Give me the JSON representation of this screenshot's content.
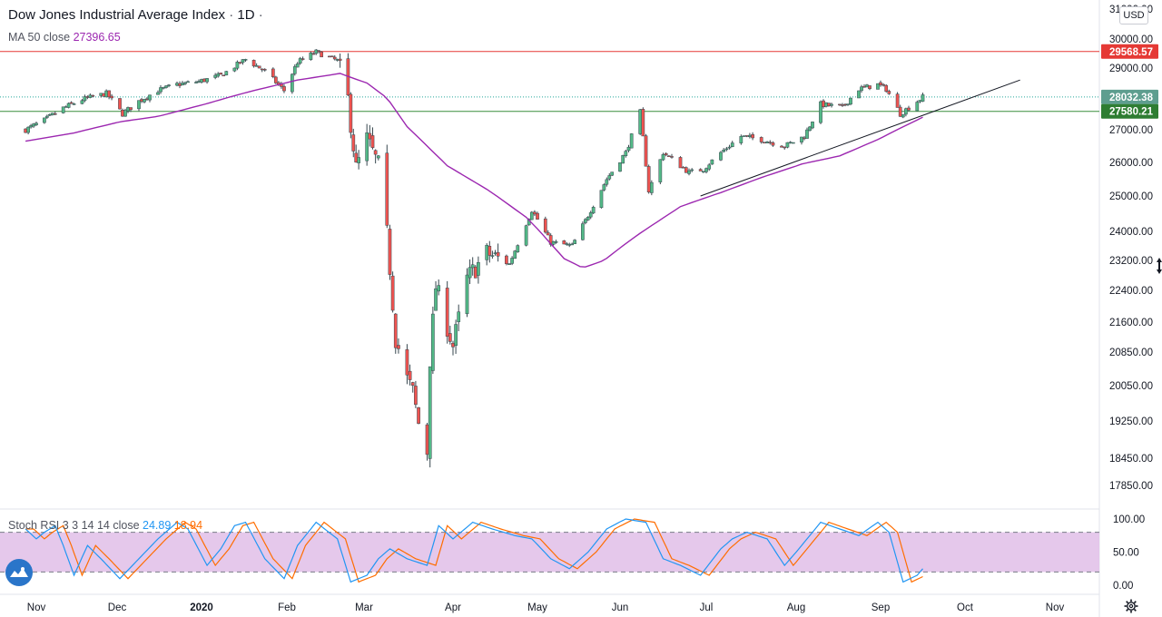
{
  "title": "Dow Jones Industrial Average Index",
  "interval": "1D",
  "separator": "·",
  "currency": "USD",
  "ma_label": "MA 50 close",
  "ma_value": "27396.65",
  "stoch_label": "Stoch RSI 3 3 14 14 close",
  "stoch_k": "24.89",
  "stoch_d": "18.94",
  "colors": {
    "up": "#26a69a",
    "up_fill": "#53b987",
    "down": "#ef5350",
    "wick": "#37474f",
    "ma": "#9c27b0",
    "resistance": "#e53935",
    "support": "#388e3c",
    "k": "#2196f3",
    "d": "#ff6d00",
    "band": "#e1bee7"
  },
  "chart_data": [
    {
      "type": "candlestick",
      "title": "Dow Jones Industrial Average Index",
      "y_ticks": [
        "30000.00",
        "29000.00",
        "28000.00",
        "27000.00",
        "26000.00",
        "25000.00",
        "24000.00",
        "23200.00",
        "22400.00",
        "21600.00",
        "20850.00",
        "20050.00",
        "19250.00",
        "18450.00",
        "17850.00"
      ],
      "x_ticks": [
        "Nov",
        "Dec",
        "2020",
        "Feb",
        "Mar",
        "Apr",
        "May",
        "Jun",
        "Jul",
        "Aug",
        "Sep",
        "Oct",
        "Nov"
      ],
      "price_labels": {
        "resistance": "29568.57",
        "last_close": "28032.38",
        "support": "27580.21"
      },
      "ylim": [
        17500,
        31000
      ],
      "close_path": [
        [
          "2019-10-28",
          27000
        ],
        [
          "2019-11-04",
          27300
        ],
        [
          "2019-11-11",
          27680
        ],
        [
          "2019-11-18",
          27950
        ],
        [
          "2019-11-27",
          28150
        ],
        [
          "2019-12-03",
          27500
        ],
        [
          "2019-12-09",
          27900
        ],
        [
          "2019-12-16",
          28250
        ],
        [
          "2019-12-23",
          28450
        ],
        [
          "2019-12-31",
          28550
        ],
        [
          "2020-01-08",
          28750
        ],
        [
          "2020-01-17",
          29300
        ],
        [
          "2020-01-24",
          28900
        ],
        [
          "2020-01-31",
          28250
        ],
        [
          "2020-02-05",
          29200
        ],
        [
          "2020-02-12",
          29550
        ],
        [
          "2020-02-20",
          29250
        ],
        [
          "2020-02-24",
          27950
        ],
        [
          "2020-02-27",
          25800
        ],
        [
          "2020-03-02",
          26700
        ],
        [
          "2020-03-06",
          25900
        ],
        [
          "2020-03-09",
          23900
        ],
        [
          "2020-03-12",
          21200
        ],
        [
          "2020-03-16",
          20200
        ],
        [
          "2020-03-18",
          19900
        ],
        [
          "2020-03-20",
          19200
        ],
        [
          "2020-03-23",
          18600
        ],
        [
          "2020-03-24",
          20700
        ],
        [
          "2020-03-26",
          22500
        ],
        [
          "2020-04-01",
          21000
        ],
        [
          "2020-04-06",
          22700
        ],
        [
          "2020-04-13",
          23400
        ],
        [
          "2020-04-21",
          23100
        ],
        [
          "2020-04-29",
          24600
        ],
        [
          "2020-05-06",
          23700
        ],
        [
          "2020-05-14",
          23600
        ],
        [
          "2020-05-19",
          24300
        ],
        [
          "2020-05-27",
          25500
        ],
        [
          "2020-06-03",
          26300
        ],
        [
          "2020-06-08",
          27550
        ],
        [
          "2020-06-11",
          25150
        ],
        [
          "2020-06-16",
          26300
        ],
        [
          "2020-06-25",
          25700
        ],
        [
          "2020-06-30",
          25800
        ],
        [
          "2020-07-06",
          26300
        ],
        [
          "2020-07-13",
          26800
        ],
        [
          "2020-07-20",
          26700
        ],
        [
          "2020-07-28",
          26500
        ],
        [
          "2020-08-04",
          26800
        ],
        [
          "2020-08-10",
          27800
        ],
        [
          "2020-08-18",
          27700
        ],
        [
          "2020-08-24",
          28300
        ],
        [
          "2020-08-31",
          28450
        ],
        [
          "2020-09-03",
          28300
        ],
        [
          "2020-09-08",
          27500
        ],
        [
          "2020-09-11",
          27700
        ],
        [
          "2020-09-16",
          28032
        ]
      ],
      "ma50_path": [
        [
          "2019-10-28",
          26650
        ],
        [
          "2019-11-15",
          26900
        ],
        [
          "2019-12-02",
          27250
        ],
        [
          "2019-12-16",
          27420
        ],
        [
          "2020-01-02",
          27800
        ],
        [
          "2020-01-20",
          28250
        ],
        [
          "2020-02-05",
          28600
        ],
        [
          "2020-02-21",
          28820
        ],
        [
          "2020-03-02",
          28500
        ],
        [
          "2020-03-09",
          28000
        ],
        [
          "2020-03-16",
          27100
        ],
        [
          "2020-03-30",
          25900
        ],
        [
          "2020-04-13",
          25200
        ],
        [
          "2020-04-27",
          24400
        ],
        [
          "2020-05-11",
          23250
        ],
        [
          "2020-05-18",
          23000
        ],
        [
          "2020-05-26",
          23200
        ],
        [
          "2020-06-08",
          23950
        ],
        [
          "2020-06-22",
          24700
        ],
        [
          "2020-07-06",
          25100
        ],
        [
          "2020-07-20",
          25550
        ],
        [
          "2020-08-03",
          25950
        ],
        [
          "2020-08-17",
          26200
        ],
        [
          "2020-08-31",
          26700
        ],
        [
          "2020-09-16",
          27396
        ]
      ],
      "ma50_last": 27396.65,
      "horizontal_lines": [
        29568.57,
        27580.21
      ],
      "last_close": 28032.38,
      "trendline": {
        "start": [
          "2020-06-29",
          25000
        ],
        "end": [
          "2020-10-20",
          28600
        ]
      }
    },
    {
      "type": "line",
      "title": "Stoch RSI 3 3 14 14 close",
      "y_ticks": [
        "100.00",
        "50.00",
        "0.00"
      ],
      "ylim": [
        0,
        100
      ],
      "band": [
        20,
        80
      ],
      "series": [
        {
          "name": "K",
          "color": "#2196f3",
          "last": 24.89
        },
        {
          "name": "D",
          "color": "#ff6d00",
          "last": 18.94
        }
      ],
      "points": [
        [
          "2019-10-28",
          85
        ],
        [
          "2019-11-01",
          70
        ],
        [
          "2019-11-04",
          80
        ],
        [
          "2019-11-08",
          90
        ],
        [
          "2019-11-11",
          60
        ],
        [
          "2019-11-15",
          15
        ],
        [
          "2019-11-20",
          60
        ],
        [
          "2019-11-25",
          40
        ],
        [
          "2019-12-02",
          10
        ],
        [
          "2019-12-09",
          40
        ],
        [
          "2019-12-16",
          70
        ],
        [
          "2019-12-23",
          95
        ],
        [
          "2019-12-27",
          85
        ],
        [
          "2020-01-03",
          30
        ],
        [
          "2020-01-08",
          55
        ],
        [
          "2020-01-13",
          90
        ],
        [
          "2020-01-17",
          95
        ],
        [
          "2020-01-24",
          40
        ],
        [
          "2020-01-31",
          10
        ],
        [
          "2020-02-05",
          60
        ],
        [
          "2020-02-12",
          95
        ],
        [
          "2020-02-20",
          70
        ],
        [
          "2020-02-25",
          5
        ],
        [
          "2020-03-02",
          15
        ],
        [
          "2020-03-06",
          40
        ],
        [
          "2020-03-10",
          55
        ],
        [
          "2020-03-16",
          40
        ],
        [
          "2020-03-23",
          30
        ],
        [
          "2020-03-27",
          90
        ],
        [
          "2020-04-01",
          70
        ],
        [
          "2020-04-08",
          95
        ],
        [
          "2020-04-15",
          85
        ],
        [
          "2020-04-23",
          75
        ],
        [
          "2020-04-29",
          70
        ],
        [
          "2020-05-06",
          40
        ],
        [
          "2020-05-13",
          25
        ],
        [
          "2020-05-20",
          50
        ],
        [
          "2020-05-27",
          85
        ],
        [
          "2020-06-03",
          100
        ],
        [
          "2020-06-10",
          95
        ],
        [
          "2020-06-16",
          40
        ],
        [
          "2020-06-22",
          30
        ],
        [
          "2020-06-29",
          15
        ],
        [
          "2020-07-06",
          55
        ],
        [
          "2020-07-10",
          70
        ],
        [
          "2020-07-15",
          80
        ],
        [
          "2020-07-22",
          70
        ],
        [
          "2020-07-28",
          30
        ],
        [
          "2020-08-03",
          60
        ],
        [
          "2020-08-10",
          95
        ],
        [
          "2020-08-17",
          85
        ],
        [
          "2020-08-24",
          75
        ],
        [
          "2020-08-31",
          95
        ],
        [
          "2020-09-04",
          80
        ],
        [
          "2020-09-09",
          5
        ],
        [
          "2020-09-14",
          15
        ],
        [
          "2020-09-16",
          25
        ]
      ]
    }
  ]
}
